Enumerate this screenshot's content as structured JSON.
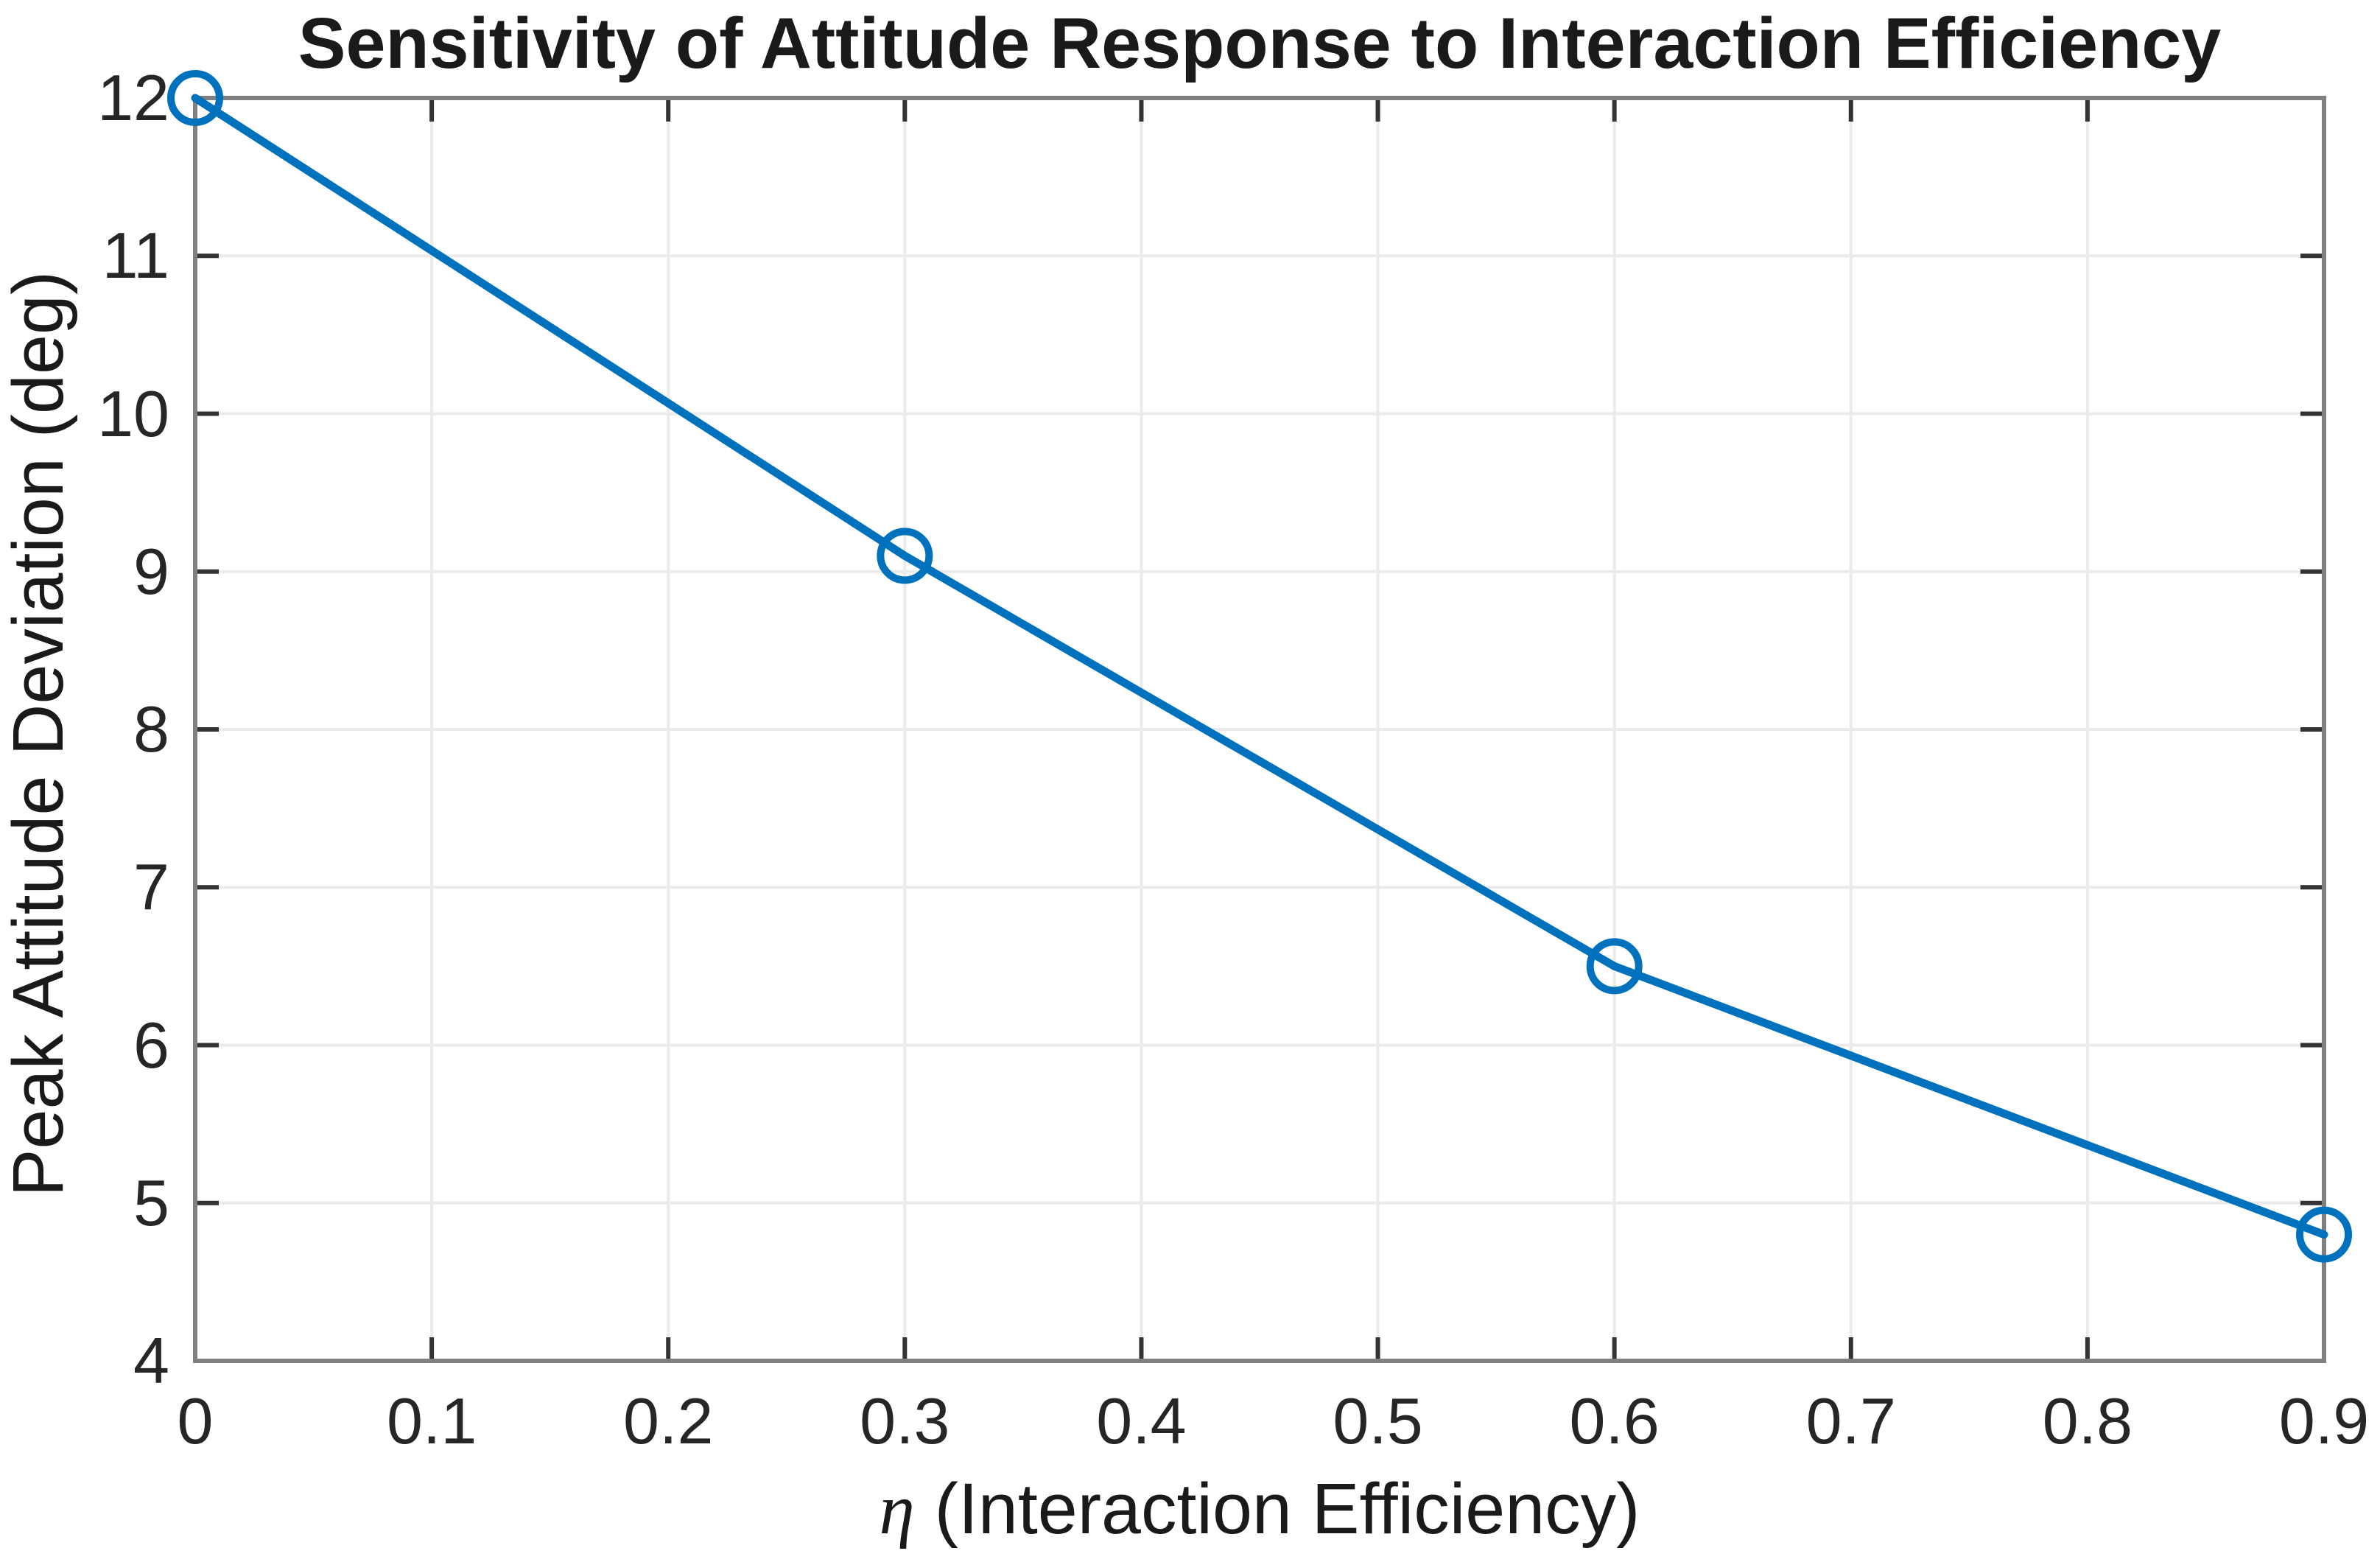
{
  "figure": {
    "background": "#ffffff"
  },
  "chart_data": {
    "type": "line",
    "title": "Sensitivity of Attitude Response to Interaction Efficiency",
    "xlabel_symbol": "η",
    "xlabel_rest": " (Interaction Efficiency)",
    "ylabel": "Peak Attitude Deviation (deg)",
    "x": [
      0,
      0.3,
      0.6,
      0.9
    ],
    "y": [
      12.0,
      9.1,
      6.5,
      4.8
    ],
    "xlim": [
      0,
      0.9
    ],
    "ylim": [
      4,
      12
    ],
    "xticks": [
      0,
      0.1,
      0.2,
      0.3,
      0.4,
      0.5,
      0.6,
      0.7,
      0.8,
      0.9
    ],
    "xtick_labels": [
      "0",
      "0.1",
      "0.2",
      "0.3",
      "0.4",
      "0.5",
      "0.6",
      "0.7",
      "0.8",
      "0.9"
    ],
    "yticks": [
      4,
      5,
      6,
      7,
      8,
      9,
      10,
      11,
      12
    ],
    "ytick_labels": [
      "4",
      "5",
      "6",
      "7",
      "8",
      "9",
      "10",
      "11",
      "12"
    ],
    "grid": true,
    "legend": null,
    "marker": "circle-open",
    "colors": {
      "line": "#0072BD",
      "grid": "#ebebeb",
      "axis_box": "#808080",
      "tick": "#333333",
      "text": "#1a1a1a"
    }
  }
}
